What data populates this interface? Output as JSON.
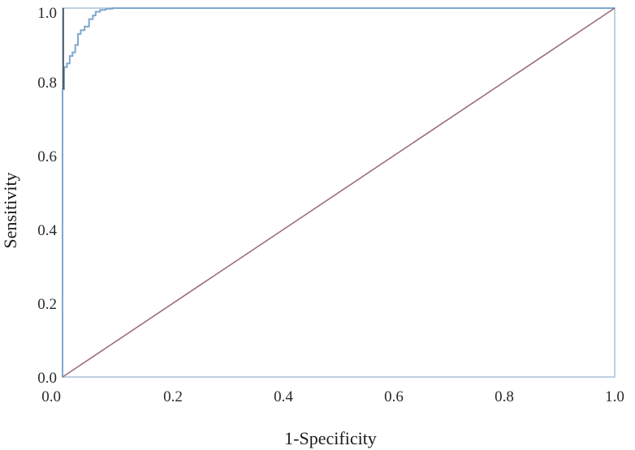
{
  "chart_data": {
    "type": "line",
    "title": "",
    "xlabel": "1-Specificity",
    "ylabel": "Sensitivity",
    "xlim": [
      0,
      1
    ],
    "ylim": [
      0,
      1
    ],
    "grid": false,
    "legend": "none",
    "x_ticks": [
      "0.0",
      "0.2",
      "0.4",
      "0.6",
      "0.8",
      "1.0"
    ],
    "y_ticks": [
      "0.0",
      "0.2",
      "0.4",
      "0.6",
      "0.8",
      "1.0"
    ],
    "series": [
      {
        "color": "#7fa8cc",
        "x": [
          0.0,
          0.0,
          0.003,
          0.003,
          0.008,
          0.008,
          0.013,
          0.013,
          0.018,
          0.018,
          0.023,
          0.023,
          0.028,
          0.028,
          0.033,
          0.033,
          0.04,
          0.04,
          0.048,
          0.048,
          0.055,
          0.055,
          0.06,
          0.06,
          0.068,
          0.068,
          0.078,
          0.078,
          0.09,
          0.09,
          0.1,
          1.0
        ],
        "y": [
          0.0,
          0.78,
          0.78,
          0.84,
          0.84,
          0.85,
          0.85,
          0.87,
          0.87,
          0.88,
          0.88,
          0.9,
          0.9,
          0.93,
          0.93,
          0.94,
          0.94,
          0.95,
          0.95,
          0.97,
          0.97,
          0.98,
          0.98,
          0.99,
          0.99,
          0.995,
          0.995,
          0.998,
          0.998,
          1.0,
          1.0,
          1.0
        ]
      },
      {
        "color": "#9e6b80",
        "x": [
          0.0,
          1.0
        ],
        "y": [
          0.0,
          1.0
        ]
      }
    ],
    "axis_color": "#a9c0d6"
  }
}
